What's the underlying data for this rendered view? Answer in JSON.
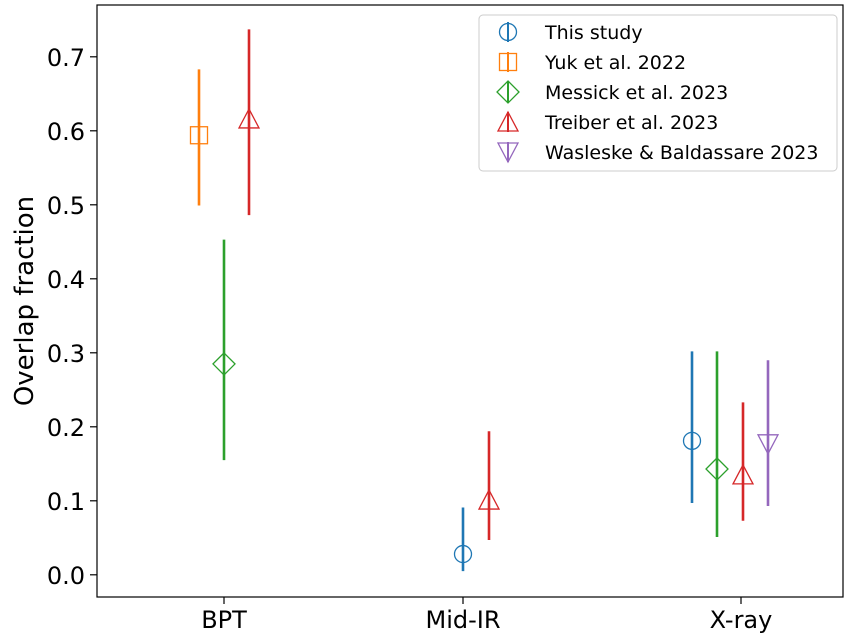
{
  "chart_data": {
    "type": "errorbar",
    "categories": [
      "BPT",
      "Mid-IR",
      "X-ray"
    ],
    "xlabel": "",
    "ylabel": "Overlap fraction",
    "ylim": [
      -0.03,
      0.77
    ],
    "yticks": [
      "0.0",
      "0.1",
      "0.2",
      "0.3",
      "0.4",
      "0.5",
      "0.6",
      "0.7"
    ],
    "legend_position": "top-right",
    "series": [
      {
        "name": "This study",
        "color": "#1f77b4",
        "marker": "circle",
        "points": [
          {
            "category": "Mid-IR",
            "value": 0.028,
            "lower": 0.005,
            "upper": 0.091
          },
          {
            "category": "X-ray",
            "value": 0.181,
            "lower": 0.097,
            "upper": 0.302
          }
        ]
      },
      {
        "name": "Yuk et al. 2022",
        "color": "#ff7f0e",
        "marker": "square",
        "points": [
          {
            "category": "BPT",
            "value": 0.594,
            "lower": 0.499,
            "upper": 0.683
          }
        ]
      },
      {
        "name": "Messick et al. 2023",
        "color": "#2ca02c",
        "marker": "diamond",
        "points": [
          {
            "category": "BPT",
            "value": 0.285,
            "lower": 0.155,
            "upper": 0.453
          },
          {
            "category": "X-ray",
            "value": 0.143,
            "lower": 0.051,
            "upper": 0.302
          }
        ]
      },
      {
        "name": "Treiber et al. 2023",
        "color": "#d62728",
        "marker": "triangle-up",
        "points": [
          {
            "category": "BPT",
            "value": 0.616,
            "lower": 0.486,
            "upper": 0.737
          },
          {
            "category": "Mid-IR",
            "value": 0.101,
            "lower": 0.047,
            "upper": 0.194
          },
          {
            "category": "X-ray",
            "value": 0.135,
            "lower": 0.073,
            "upper": 0.233
          }
        ]
      },
      {
        "name": "Wasleske & Baldassare 2023",
        "color": "#9467bd",
        "marker": "triangle-down",
        "points": [
          {
            "category": "X-ray",
            "value": 0.177,
            "lower": 0.093,
            "upper": 0.29
          }
        ]
      }
    ]
  }
}
